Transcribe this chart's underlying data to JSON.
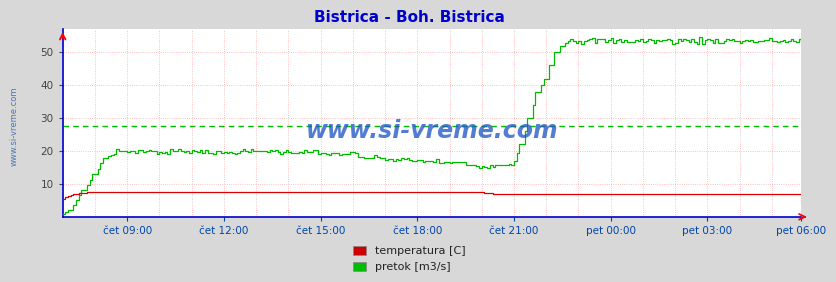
{
  "title": "Bistrica - Boh. Bistrica",
  "title_color": "#0000cc",
  "bg_color": "#d8d8d8",
  "plot_bg_color": "#ffffff",
  "ylim": [
    0,
    57
  ],
  "yticks": [
    10,
    20,
    30,
    40,
    50
  ],
  "grid_color": "#ffaaaa",
  "avg_line_value": 27.5,
  "avg_line_color": "#00bb00",
  "temp_color": "#dd0000",
  "flow_color": "#00bb00",
  "watermark_color": "#1a52c4",
  "watermark_text": "www.si-vreme.com",
  "legend_labels": [
    "temperatura [C]",
    "pretok [m3/s]"
  ],
  "legend_colors": [
    "#cc0000",
    "#00bb00"
  ],
  "xtick_labels": [
    "čet 09:00",
    "čet 12:00",
    "čet 15:00",
    "čet 18:00",
    "čet 21:00",
    "pet 00:00",
    "pet 03:00",
    "pet 06:00"
  ],
  "n_points": 276
}
